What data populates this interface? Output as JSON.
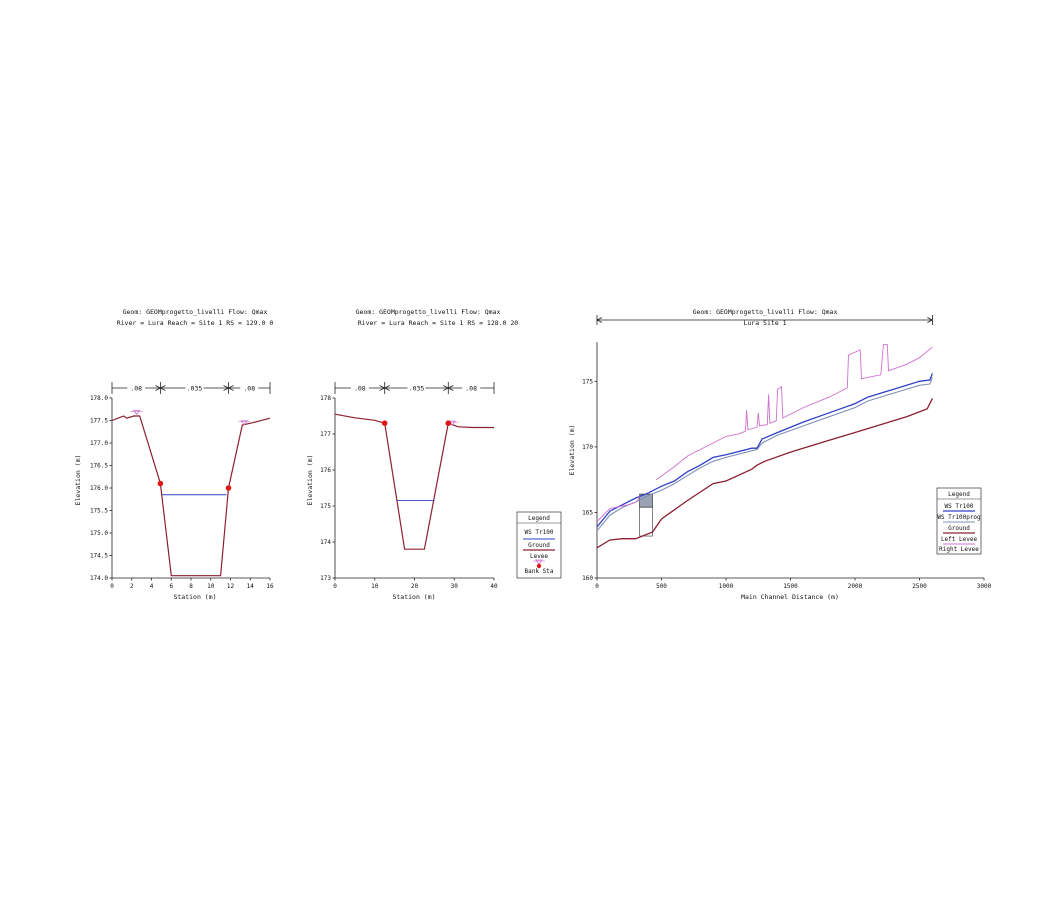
{
  "colors": {
    "ground": "#8B2030",
    "ws": "#3040C8",
    "ws_prog": "#8090B8",
    "levee": "#D070D0",
    "bank": "#E01818",
    "axis": "#222222"
  },
  "chart_data": [
    {
      "type": "line",
      "title_line1": "Geom: GEOMprogetto_livelli    Flow: Qmax",
      "title_line2": "River = Lura    Reach = Site 1       RS = 129.0  0",
      "xlabel": "Station (m)",
      "ylabel": "Elevation (m)",
      "xlim": [
        0,
        16
      ],
      "ylim": [
        174.0,
        178.0
      ],
      "xticks": [
        0,
        2,
        4,
        6,
        8,
        10,
        12,
        14,
        16
      ],
      "yticks": [
        174.0,
        174.5,
        175.0,
        175.5,
        176.0,
        176.5,
        177.0,
        177.5,
        178.0
      ],
      "ytick_labels": [
        "174.0",
        "174.5",
        "175.0",
        "175.5",
        "176.0",
        "176.5",
        "177.0",
        "177.5",
        "178.0"
      ],
      "manning": {
        "breaks": [
          0,
          4.9,
          11.8,
          16
        ],
        "labels": [
          ".08",
          ".035",
          ".08"
        ]
      },
      "ground": [
        [
          0,
          177.5
        ],
        [
          0.6,
          177.55
        ],
        [
          1.2,
          177.6
        ],
        [
          1.5,
          177.55
        ],
        [
          2.2,
          177.6
        ],
        [
          2.8,
          177.6
        ],
        [
          4.9,
          176.1
        ],
        [
          6.0,
          174.05
        ],
        [
          11.0,
          174.05
        ],
        [
          11.8,
          176.0
        ],
        [
          13.2,
          177.4
        ],
        [
          14.2,
          177.45
        ],
        [
          16,
          177.55
        ]
      ],
      "levees": [
        [
          2.5,
          177.68
        ],
        [
          13.4,
          177.45
        ]
      ],
      "ws": {
        "x1": 5.1,
        "x2": 11.6,
        "y": 175.85
      },
      "bank_points": [
        [
          4.9,
          176.1
        ],
        [
          11.8,
          176.0
        ]
      ]
    },
    {
      "type": "line",
      "title_line1": "Geom: GEOMprogetto_livelli    Flow: Qmax",
      "title_line2": "River = Lura    Reach = Site 1       RS = 128.0  20",
      "xlabel": "Station (m)",
      "ylabel": "Elevation (m)",
      "xlim": [
        0,
        40
      ],
      "ylim": [
        173,
        178
      ],
      "xticks": [
        0,
        10,
        20,
        30,
        40
      ],
      "yticks": [
        173,
        174,
        175,
        176,
        177,
        178
      ],
      "ytick_labels": [
        "173",
        "174",
        "175",
        "176",
        "177",
        "178"
      ],
      "manning": {
        "breaks": [
          0,
          12.5,
          28.5,
          40
        ],
        "labels": [
          ".08",
          ".035",
          ".08"
        ]
      },
      "ground": [
        [
          0,
          177.55
        ],
        [
          5,
          177.45
        ],
        [
          10,
          177.38
        ],
        [
          12.5,
          177.3
        ],
        [
          17.5,
          173.8
        ],
        [
          22.5,
          173.8
        ],
        [
          28.5,
          177.3
        ],
        [
          31,
          177.2
        ],
        [
          35,
          177.18
        ],
        [
          40,
          177.18
        ]
      ],
      "levees": [
        [
          29.5,
          177.3
        ]
      ],
      "ws": {
        "x1": 15.5,
        "x2": 25,
        "y": 175.15
      },
      "bank_points": [
        [
          12.5,
          177.3
        ],
        [
          28.5,
          177.3
        ]
      ]
    },
    {
      "type": "line",
      "title_line1": "Geom: GEOMprogetto_livelli    Flow: Qmax",
      "title_line2": "Lura Site 1",
      "xlabel": "Main Channel Distance (m)",
      "ylabel": "Elevation (m)",
      "xlim": [
        0,
        3000
      ],
      "ylim": [
        160,
        178
      ],
      "xticks": [
        0,
        500,
        1000,
        1500,
        2000,
        2500,
        3000
      ],
      "yticks": [
        160,
        165,
        170,
        175
      ],
      "ytick_labels": [
        "160",
        "165",
        "170",
        "175"
      ],
      "range_end": 2600,
      "ground": [
        [
          0,
          162.3
        ],
        [
          100,
          162.9
        ],
        [
          200,
          163.0
        ],
        [
          300,
          163.0
        ],
        [
          430,
          163.5
        ],
        [
          500,
          164.5
        ],
        [
          600,
          165.2
        ],
        [
          700,
          165.9
        ],
        [
          900,
          167.2
        ],
        [
          1000,
          167.4
        ],
        [
          1200,
          168.3
        ],
        [
          1240,
          168.6
        ],
        [
          1300,
          168.9
        ],
        [
          1500,
          169.6
        ],
        [
          1800,
          170.5
        ],
        [
          2000,
          171.1
        ],
        [
          2200,
          171.7
        ],
        [
          2400,
          172.3
        ],
        [
          2560,
          172.9
        ],
        [
          2600,
          173.7
        ]
      ],
      "ws": [
        [
          0,
          163.9
        ],
        [
          100,
          165.1
        ],
        [
          200,
          165.6
        ],
        [
          300,
          166.1
        ],
        [
          400,
          166.5
        ],
        [
          500,
          167.0
        ],
        [
          600,
          167.4
        ],
        [
          700,
          168.1
        ],
        [
          800,
          168.6
        ],
        [
          900,
          169.2
        ],
        [
          1000,
          169.4
        ],
        [
          1200,
          169.9
        ],
        [
          1240,
          169.9
        ],
        [
          1280,
          170.6
        ],
        [
          1400,
          171.1
        ],
        [
          1600,
          171.9
        ],
        [
          1800,
          172.6
        ],
        [
          2000,
          173.3
        ],
        [
          2100,
          173.8
        ],
        [
          2300,
          174.4
        ],
        [
          2500,
          175.0
        ],
        [
          2580,
          175.1
        ],
        [
          2600,
          175.6
        ]
      ],
      "ws_prog": [
        [
          0,
          163.6
        ],
        [
          100,
          164.8
        ],
        [
          200,
          165.4
        ],
        [
          300,
          165.8
        ],
        [
          400,
          166.3
        ],
        [
          500,
          166.7
        ],
        [
          600,
          167.2
        ],
        [
          700,
          167.8
        ],
        [
          800,
          168.4
        ],
        [
          900,
          168.9
        ],
        [
          1000,
          169.2
        ],
        [
          1200,
          169.7
        ],
        [
          1240,
          169.8
        ],
        [
          1280,
          170.3
        ],
        [
          1400,
          170.9
        ],
        [
          1600,
          171.6
        ],
        [
          1800,
          172.3
        ],
        [
          2000,
          173.0
        ],
        [
          2100,
          173.5
        ],
        [
          2300,
          174.1
        ],
        [
          2500,
          174.7
        ],
        [
          2580,
          174.8
        ],
        [
          2600,
          175.3
        ]
      ],
      "left_levee": [
        [
          0,
          164.3
        ],
        [
          100,
          165.3
        ],
        [
          250,
          165.6
        ],
        [
          300,
          165.8
        ],
        [
          320,
          166.0
        ],
        [
          330,
          166.3
        ]
      ],
      "right_levee": [
        [
          460,
          167.5
        ],
        [
          600,
          168.5
        ],
        [
          700,
          169.3
        ],
        [
          900,
          170.3
        ],
        [
          1000,
          170.8
        ],
        [
          1100,
          171.0
        ],
        [
          1150,
          171.2
        ],
        [
          1160,
          172.8
        ],
        [
          1170,
          171.3
        ],
        [
          1240,
          171.5
        ],
        [
          1250,
          172.6
        ],
        [
          1260,
          171.6
        ],
        [
          1320,
          171.7
        ],
        [
          1330,
          174.0
        ],
        [
          1340,
          171.8
        ],
        [
          1390,
          172.0
        ],
        [
          1400,
          174.4
        ],
        [
          1430,
          174.6
        ],
        [
          1440,
          172.2
        ],
        [
          1600,
          173.0
        ],
        [
          1800,
          173.8
        ],
        [
          1900,
          174.3
        ],
        [
          1940,
          174.5
        ],
        [
          1950,
          177.0
        ],
        [
          2040,
          177.4
        ],
        [
          2050,
          175.2
        ],
        [
          2200,
          175.5
        ],
        [
          2220,
          177.8
        ],
        [
          2250,
          177.8
        ],
        [
          2260,
          175.8
        ],
        [
          2400,
          176.3
        ],
        [
          2500,
          176.8
        ],
        [
          2600,
          177.6
        ]
      ],
      "structure": {
        "x1": 330,
        "x2": 430,
        "top": 166.4,
        "bottom": 165.4,
        "base": 163.2
      }
    }
  ],
  "legend1": {
    "title": "Legend",
    "items": [
      "WS Tr100",
      "Ground",
      "Levee",
      "Bank Sta"
    ]
  },
  "legend2": {
    "title": "Legend",
    "items": [
      "WS  Tr100",
      "WS  Tr100prog",
      "Ground",
      "Left Levee",
      "Right Levee"
    ]
  }
}
